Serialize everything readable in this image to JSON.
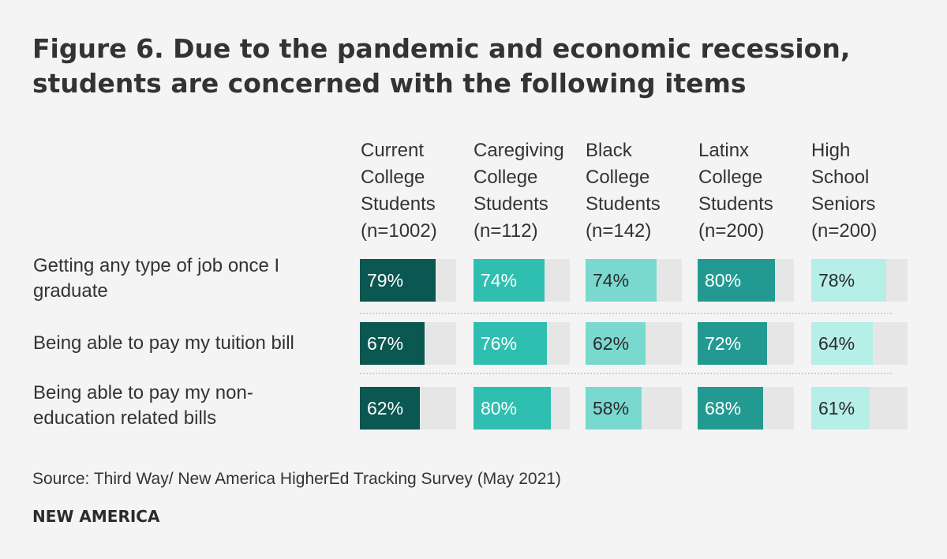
{
  "title_lines": [
    "Figure 6. Due to the pandemic and economic recession,",
    "students are concerned with the following items"
  ],
  "colors": {
    "current": "#0b5752",
    "caregiving": "#2fbfb1",
    "black": "#79d9cf",
    "latinx": "#239a91",
    "hs": "#b6eee8",
    "track": "#e6e6e6",
    "background": "#f4f4f4"
  },
  "chart_data": {
    "type": "bar",
    "orientation": "horizontal",
    "title": "Figure 6. Due to the pandemic and economic recession, students are concerned with the following items",
    "categories": [
      "Getting any type of job once I graduate",
      "Being able to pay my tuition bill",
      "Being able to pay my non-education related bills"
    ],
    "category_lines": [
      [
        "Getting any type of job once I",
        "graduate"
      ],
      [
        "Being able to pay my tuition bill"
      ],
      [
        "Being able to pay my non-",
        "education related bills"
      ]
    ],
    "series": [
      {
        "name": "Current College Students (n=1002)",
        "header_lines": [
          "Current",
          "College",
          "Students",
          "(n=1002)"
        ],
        "values": [
          79,
          67,
          62
        ],
        "labels": [
          "79%",
          "67%",
          "62%"
        ],
        "color": "#0b5752",
        "text_color": "#ffffff"
      },
      {
        "name": "Caregiving College Students (n=112)",
        "header_lines": [
          "Caregiving",
          "College",
          "Students",
          "(n=112)"
        ],
        "values": [
          74,
          76,
          80
        ],
        "labels": [
          "74%",
          "76%",
          "80%"
        ],
        "color": "#2fbfb1",
        "text_color": "#ffffff"
      },
      {
        "name": "Black College Students (n=142)",
        "header_lines": [
          "Black",
          "College",
          "Students",
          "(n=142)"
        ],
        "values": [
          74,
          62,
          58
        ],
        "labels": [
          "74%",
          "62%",
          "58%"
        ],
        "color": "#79d9cf",
        "text_color": "#2b2b2b"
      },
      {
        "name": "Latinx College Students (n=200)",
        "header_lines": [
          "Latinx",
          "College",
          "Students",
          "(n=200)"
        ],
        "values": [
          80,
          72,
          68
        ],
        "labels": [
          "80%",
          "72%",
          "68%"
        ],
        "color": "#239a91",
        "text_color": "#ffffff"
      },
      {
        "name": "High School Seniors (n=200)",
        "header_lines": [
          "High",
          "School",
          "Seniors",
          "(n=200)"
        ],
        "values": [
          78,
          64,
          61
        ],
        "labels": [
          "78%",
          "64%",
          "61%"
        ],
        "color": "#b6eee8",
        "text_color": "#2b2b2b"
      }
    ],
    "xlim": [
      0,
      100
    ]
  },
  "source": "Source: Third Way/ New America HigherEd Tracking Survey (May 2021)",
  "brand": "NEW AMERICA"
}
